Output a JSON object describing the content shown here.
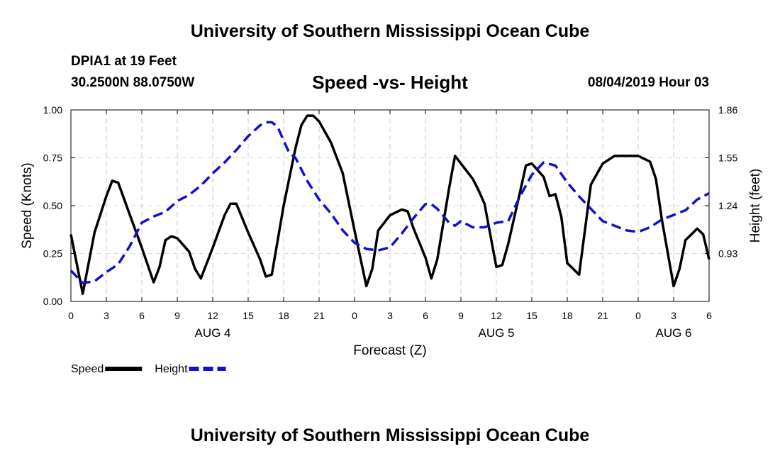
{
  "header": {
    "title": "University of Southern Mississippi Ocean Cube",
    "station": "DPIA1 at 19 Feet",
    "coordinates": "30.2500N 88.0750W",
    "subtitle": "Speed -vs- Height",
    "datetime": "08/04/2019 Hour 03"
  },
  "footer": {
    "title": "University of Southern Mississippi Ocean Cube"
  },
  "chart_data": {
    "type": "line",
    "title": "Speed -vs- Height",
    "xlabel": "Forecast (Z)",
    "ylabel": "Speed (Knots)",
    "y2label": "Height (feet)",
    "xlim": [
      0,
      54
    ],
    "ylim": [
      0,
      1.0
    ],
    "y2lim": [
      0.62,
      1.86
    ],
    "x_tick_values": [
      0,
      3,
      6,
      9,
      12,
      15,
      18,
      21,
      24,
      27,
      30,
      33,
      36,
      39,
      42,
      45,
      48,
      51,
      54
    ],
    "x_tick_labels": [
      "0",
      "3",
      "6",
      "9",
      "12",
      "15",
      "18",
      "21",
      "0",
      "3",
      "6",
      "9",
      "12",
      "15",
      "18",
      "21",
      "0",
      "3",
      "6"
    ],
    "y_ticks": [
      0.0,
      0.25,
      0.5,
      0.75,
      1.0
    ],
    "y_tick_labels": [
      "0.00",
      "0.25",
      "0.50",
      "0.75",
      "1.00"
    ],
    "y2_ticks": [
      0.93,
      1.24,
      1.55,
      1.86
    ],
    "y2_tick_labels": [
      "0.93",
      "1.24",
      "1.55",
      "1.86"
    ],
    "day_labels": [
      {
        "x": 12,
        "label": "AUG 4"
      },
      {
        "x": 36,
        "label": "AUG 5"
      },
      {
        "x": 51,
        "label": "AUG 6"
      }
    ],
    "grid": true,
    "legend_position": "bottom-left",
    "series": [
      {
        "name": "Speed",
        "axis": "left",
        "color": "#000000",
        "style": "solid",
        "x": [
          0,
          1,
          2,
          3,
          3.5,
          4,
          5,
          6,
          7,
          7.5,
          8,
          8.5,
          9,
          10,
          10.5,
          11,
          12,
          13,
          13.5,
          14,
          15,
          16,
          16.5,
          17,
          18,
          19,
          19.5,
          20,
          20.5,
          21,
          22,
          23,
          24,
          25,
          25.5,
          26,
          27,
          28,
          28.5,
          29,
          30,
          30.5,
          31,
          32,
          32.5,
          33,
          34,
          34.5,
          35,
          36,
          36.5,
          37,
          38,
          38.5,
          39,
          40,
          40.5,
          41,
          41.5,
          42,
          43,
          44,
          45,
          46,
          47,
          48,
          49,
          49.5,
          50,
          51,
          51.5,
          52,
          53,
          53.5,
          54
        ],
        "values": [
          0.35,
          0.04,
          0.36,
          0.55,
          0.63,
          0.62,
          0.45,
          0.28,
          0.1,
          0.18,
          0.32,
          0.34,
          0.33,
          0.26,
          0.17,
          0.12,
          0.28,
          0.45,
          0.51,
          0.51,
          0.36,
          0.22,
          0.13,
          0.14,
          0.5,
          0.8,
          0.92,
          0.97,
          0.97,
          0.94,
          0.83,
          0.67,
          0.37,
          0.08,
          0.17,
          0.37,
          0.45,
          0.48,
          0.47,
          0.38,
          0.23,
          0.12,
          0.22,
          0.59,
          0.76,
          0.72,
          0.64,
          0.58,
          0.51,
          0.18,
          0.19,
          0.3,
          0.57,
          0.71,
          0.72,
          0.65,
          0.55,
          0.56,
          0.44,
          0.2,
          0.14,
          0.61,
          0.72,
          0.76,
          0.76,
          0.76,
          0.73,
          0.64,
          0.43,
          0.08,
          0.17,
          0.32,
          0.38,
          0.35,
          0.22
        ]
      },
      {
        "name": "Height",
        "axis": "right",
        "color": "#1010d0",
        "style": "dashed",
        "x": [
          0,
          1,
          2,
          3,
          4,
          5,
          6,
          7,
          8,
          9,
          10,
          11,
          12,
          13,
          14,
          15,
          16,
          16.5,
          17,
          17.5,
          18,
          18.5,
          19,
          20,
          21,
          22,
          23,
          24,
          25,
          26,
          27,
          28,
          29,
          30,
          30.5,
          31,
          32,
          32.5,
          33,
          34,
          35,
          36,
          37,
          38,
          39,
          40,
          41,
          42,
          43,
          44,
          45,
          46,
          47,
          48,
          49,
          50,
          51,
          52,
          53,
          54
        ],
        "values": [
          0.82,
          0.74,
          0.75,
          0.81,
          0.86,
          0.98,
          1.13,
          1.17,
          1.2,
          1.27,
          1.31,
          1.37,
          1.45,
          1.52,
          1.6,
          1.69,
          1.76,
          1.78,
          1.78,
          1.75,
          1.66,
          1.58,
          1.55,
          1.4,
          1.28,
          1.19,
          1.08,
          1.0,
          0.96,
          0.95,
          0.97,
          1.06,
          1.16,
          1.25,
          1.25,
          1.22,
          1.13,
          1.11,
          1.14,
          1.1,
          1.1,
          1.13,
          1.14,
          1.3,
          1.44,
          1.52,
          1.5,
          1.39,
          1.3,
          1.22,
          1.14,
          1.11,
          1.08,
          1.07,
          1.1,
          1.15,
          1.18,
          1.21,
          1.28,
          1.32
        ]
      }
    ]
  }
}
